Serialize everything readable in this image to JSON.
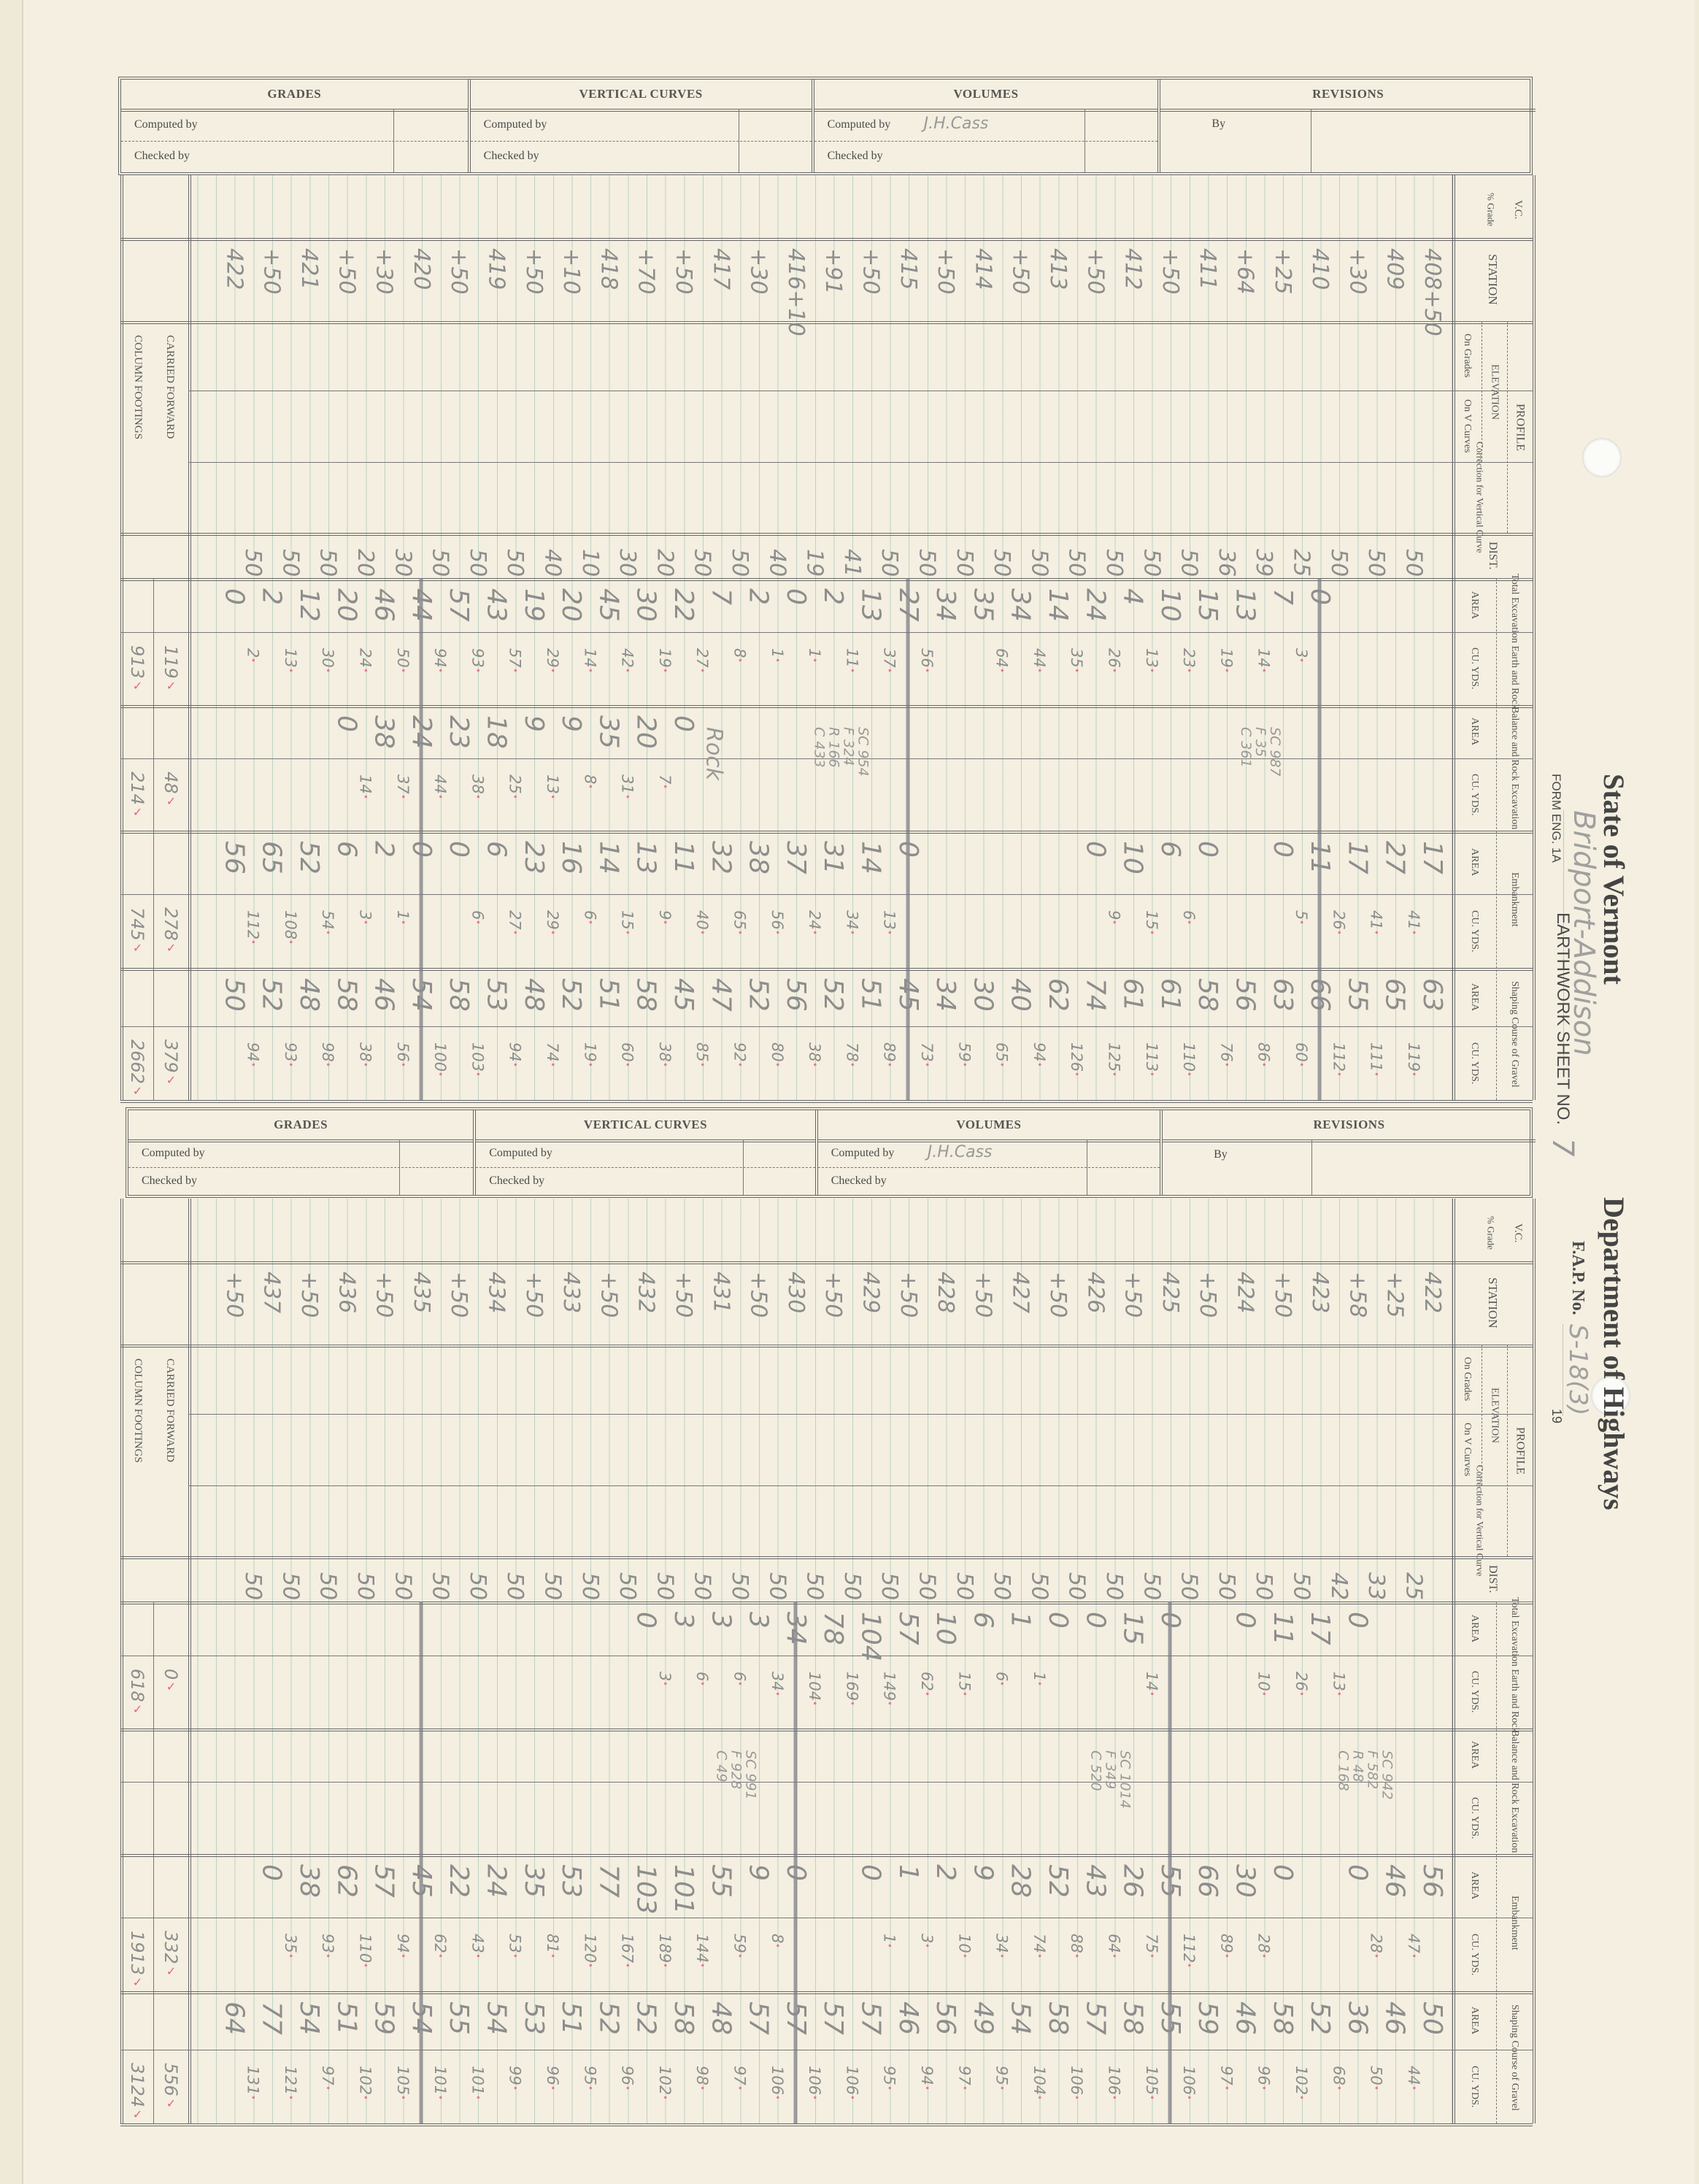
{
  "header": {
    "state": "State of Vermont",
    "department": "Department of Highways",
    "form_no": "FORM ENG. 1A",
    "sheet_label": "EARTHWORK SHEET NO.",
    "sheet_no": "7",
    "project": "Bridport-Addison",
    "fap_label": "F.A.P. No.",
    "fap_no": "S-18(3)",
    "year": "19"
  },
  "signoff": {
    "grades": "GRADES",
    "vertical_curves": "VERTICAL CURVES",
    "volumes": "VOLUMES",
    "revisions": "REVISIONS",
    "computed_by": "Computed by",
    "checked_by": "Checked by",
    "by": "By",
    "volumes_computed_by": "J.H.Cass"
  },
  "columns": {
    "vc": "V.C.",
    "grade": "% Grade",
    "station": "STATION",
    "profile": "PROFILE",
    "elevation": "ELEVATION",
    "on_grades": "On Grades",
    "on_v_curves": "On V Curves",
    "correction": "Correction for Vertical Curve",
    "dist": "DIST.",
    "total_excavation": "Total Excavation Earth and Rock",
    "balance_rock": "Balance and Rock Excavation",
    "embankment": "Embankment",
    "shaping": "Shaping Course of Gravel",
    "area": "AREA",
    "cu_yds": "CU. YDS."
  },
  "footer_labels": {
    "carried_forward": "CARRIED FORWARD",
    "column_footings": "COLUMN FOOTINGS"
  },
  "sheets": [
    {
      "rows": [
        [
          "408+50",
          "50",
          "",
          "",
          "",
          "",
          "17",
          "41",
          "63",
          "119"
        ],
        [
          "409",
          "50",
          "",
          "",
          "",
          "",
          "27",
          "41",
          "65",
          "111"
        ],
        [
          "+30",
          "50",
          "",
          "",
          "",
          "",
          "17",
          "26",
          "55",
          "112"
        ],
        [
          "410",
          "25",
          "0",
          "3",
          "",
          "",
          "11",
          "5",
          "66",
          "60"
        ],
        [
          "+25",
          "39",
          "7",
          "14",
          "",
          "",
          "0",
          "",
          "63",
          "86"
        ],
        [
          "+64",
          "36",
          "13",
          "19",
          "",
          "",
          "",
          "",
          "56",
          "76"
        ],
        [
          "411",
          "50",
          "15",
          "23",
          "",
          "",
          "0",
          "6",
          "58",
          "110"
        ],
        [
          "+50",
          "50",
          "10",
          "13",
          "",
          "",
          "6",
          "15",
          "61",
          "113"
        ],
        [
          "412",
          "50",
          "4",
          "26",
          "",
          "",
          "10",
          "9",
          "61",
          "125"
        ],
        [
          "+50",
          "50",
          "24",
          "35",
          "",
          "",
          "0",
          "",
          "74",
          "126"
        ],
        [
          "413",
          "50",
          "14",
          "44",
          "",
          "",
          "",
          "",
          "62",
          "94"
        ],
        [
          "+50",
          "50",
          "34",
          "64",
          "",
          "",
          "",
          "",
          "40",
          "65"
        ],
        [
          "414",
          "50",
          "35",
          "",
          "",
          "",
          "",
          "",
          "30",
          "59"
        ],
        [
          "+50",
          "50",
          "34",
          "56",
          "",
          "",
          "",
          "",
          "34",
          "73"
        ],
        [
          "415",
          "50",
          "27",
          "37",
          "",
          "",
          "0",
          "13",
          "45",
          "89"
        ],
        [
          "+50",
          "41",
          "13",
          "11",
          "",
          "",
          "14",
          "34",
          "51",
          "78"
        ],
        [
          "+91",
          "19",
          "2",
          "1",
          "",
          "",
          "31",
          "24",
          "52",
          "38"
        ],
        [
          "416+10",
          "40",
          "0",
          "1",
          "",
          "",
          "37",
          "56",
          "56",
          "80"
        ],
        [
          "+30",
          "50",
          "2",
          "8",
          "",
          "",
          "38",
          "65",
          "52",
          "92"
        ],
        [
          "417",
          "50",
          "7",
          "27",
          "",
          "",
          "32",
          "40",
          "47",
          "85"
        ],
        [
          "+50",
          "20",
          "22",
          "19",
          "0",
          "7",
          "11",
          "9",
          "45",
          "38"
        ],
        [
          "+70",
          "30",
          "30",
          "42",
          "20",
          "31",
          "13",
          "15",
          "58",
          "60"
        ],
        [
          "418",
          "10",
          "45",
          "14",
          "35",
          "8",
          "14",
          "6",
          "51",
          "19"
        ],
        [
          "+10",
          "40",
          "20",
          "29",
          "9",
          "13",
          "16",
          "29",
          "52",
          "74"
        ],
        [
          "+50",
          "50",
          "19",
          "57",
          "9",
          "25",
          "23",
          "27",
          "48",
          "94"
        ],
        [
          "419",
          "50",
          "43",
          "93",
          "18",
          "38",
          "6",
          "6",
          "53",
          "103"
        ],
        [
          "+50",
          "50",
          "57",
          "94",
          "23",
          "44",
          "0",
          "",
          "58",
          "100"
        ],
        [
          "420",
          "30",
          "44",
          "50",
          "24",
          "37",
          "0",
          "1",
          "54",
          "56"
        ],
        [
          "+30",
          "20",
          "46",
          "24",
          "38",
          "14",
          "2",
          "3",
          "46",
          "38"
        ],
        [
          "+50",
          "50",
          "20",
          "30",
          "0",
          "",
          "6",
          "54",
          "58",
          "98"
        ],
        [
          "421",
          "50",
          "12",
          "13",
          "",
          "",
          "52",
          "108",
          "48",
          "93"
        ],
        [
          "+50",
          "50",
          "2",
          "2",
          "",
          "",
          "65",
          "112",
          "52",
          "94"
        ],
        [
          "422",
          "",
          "0",
          "",
          "",
          "",
          "56",
          "",
          "50",
          ""
        ]
      ],
      "notes": [
        {
          "row": 4,
          "lines": [
            "C 361",
            "F 35",
            "SC 987"
          ]
        },
        {
          "row": 15,
          "lines": [
            "C 433",
            "R 166",
            "F 324",
            "SC 954"
          ]
        },
        {
          "row": 19,
          "lines": [
            "Rock"
          ]
        }
      ],
      "totals": {
        "total_excavation": {
          "carried": "119",
          "footing": "913"
        },
        "balance_rock": {
          "carried": "48",
          "footing": "214"
        },
        "embankment": {
          "carried": "278",
          "footing": "745"
        },
        "shaping": {
          "carried": "379",
          "footing": "2662"
        }
      },
      "break_rows": [
        3,
        14,
        27
      ]
    },
    {
      "rows": [
        [
          "422",
          "25",
          "",
          "",
          "",
          "",
          "56",
          "47",
          "50",
          "44"
        ],
        [
          "+25",
          "33",
          "",
          "",
          "",
          "",
          "46",
          "28",
          "46",
          "50"
        ],
        [
          "+58",
          "42",
          "0",
          "13",
          "",
          "",
          "0",
          "",
          "36",
          "68"
        ],
        [
          "423",
          "50",
          "17",
          "26",
          "",
          "",
          "",
          "",
          "52",
          "102"
        ],
        [
          "+50",
          "50",
          "11",
          "10",
          "",
          "",
          "0",
          "28",
          "58",
          "96"
        ],
        [
          "424",
          "50",
          "0",
          "",
          "",
          "",
          "30",
          "89",
          "46",
          "97"
        ],
        [
          "+50",
          "50",
          "",
          "",
          "",
          "",
          "66",
          "112",
          "59",
          "106"
        ],
        [
          "425",
          "50",
          "0",
          "14",
          "",
          "",
          "55",
          "75",
          "55",
          "105"
        ],
        [
          "+50",
          "50",
          "15",
          "",
          "",
          "",
          "26",
          "64",
          "58",
          "106"
        ],
        [
          "426",
          "50",
          "0",
          "",
          "",
          "",
          "43",
          "88",
          "57",
          "106"
        ],
        [
          "+50",
          "50",
          "0",
          "1",
          "",
          "",
          "52",
          "74",
          "58",
          "104"
        ],
        [
          "427",
          "50",
          "1",
          "6",
          "",
          "",
          "28",
          "34",
          "54",
          "95"
        ],
        [
          "+50",
          "50",
          "6",
          "15",
          "",
          "",
          "9",
          "10",
          "49",
          "97"
        ],
        [
          "428",
          "50",
          "10",
          "62",
          "",
          "",
          "2",
          "3",
          "56",
          "94"
        ],
        [
          "+50",
          "50",
          "57",
          "149",
          "",
          "",
          "1",
          "1",
          "46",
          "95"
        ],
        [
          "429",
          "50",
          "104",
          "169",
          "",
          "",
          "0",
          "",
          "57",
          "106"
        ],
        [
          "+50",
          "50",
          "78",
          "104",
          "",
          "",
          "",
          "",
          "57",
          "106"
        ],
        [
          "430",
          "50",
          "34",
          "34",
          "",
          "",
          "0",
          "8",
          "57",
          "106"
        ],
        [
          "+50",
          "50",
          "3",
          "6",
          "",
          "",
          "9",
          "59",
          "57",
          "97"
        ],
        [
          "431",
          "50",
          "3",
          "6",
          "",
          "",
          "55",
          "144",
          "48",
          "98"
        ],
        [
          "+50",
          "50",
          "3",
          "3",
          "",
          "",
          "101",
          "189",
          "58",
          "102"
        ],
        [
          "432",
          "50",
          "0",
          "",
          "",
          "",
          "103",
          "167",
          "52",
          "96"
        ],
        [
          "+50",
          "50",
          "",
          "",
          "",
          "",
          "77",
          "120",
          "52",
          "95"
        ],
        [
          "433",
          "50",
          "",
          "",
          "",
          "",
          "53",
          "81",
          "51",
          "96"
        ],
        [
          "+50",
          "50",
          "",
          "",
          "",
          "",
          "35",
          "53",
          "53",
          "99"
        ],
        [
          "434",
          "50",
          "",
          "",
          "",
          "",
          "24",
          "43",
          "54",
          "101"
        ],
        [
          "+50",
          "50",
          "",
          "",
          "",
          "",
          "22",
          "62",
          "55",
          "101"
        ],
        [
          "435",
          "50",
          "",
          "",
          "",
          "",
          "45",
          "94",
          "54",
          "105"
        ],
        [
          "+50",
          "50",
          "",
          "",
          "",
          "",
          "57",
          "110",
          "59",
          "102"
        ],
        [
          "436",
          "50",
          "",
          "",
          "",
          "",
          "62",
          "93",
          "51",
          "97"
        ],
        [
          "+50",
          "50",
          "",
          "",
          "",
          "",
          "38",
          "35",
          "54",
          "121"
        ],
        [
          "437",
          "50",
          "",
          "",
          "",
          "",
          "0",
          "",
          "77",
          "131"
        ],
        [
          "+50",
          "",
          "",
          "",
          "",
          "",
          "",
          "",
          "64",
          ""
        ]
      ],
      "notes": [
        {
          "row": 1,
          "lines": [
            "C 168",
            "R 48",
            "F 582",
            "SC 942"
          ]
        },
        {
          "row": 8,
          "lines": [
            "C 520",
            "F 349",
            "SC 1014"
          ]
        },
        {
          "row": 18,
          "lines": [
            "C 49",
            "F 928",
            "SC 991"
          ]
        }
      ],
      "totals": {
        "total_excavation": {
          "carried": "0",
          "footing": "618"
        },
        "balance_rock": {
          "carried": "",
          "footing": ""
        },
        "embankment": {
          "carried": "332",
          "footing": "1913"
        },
        "shaping": {
          "carried": "556",
          "footing": "3124"
        }
      },
      "break_rows": [
        7,
        17,
        27
      ]
    }
  ]
}
